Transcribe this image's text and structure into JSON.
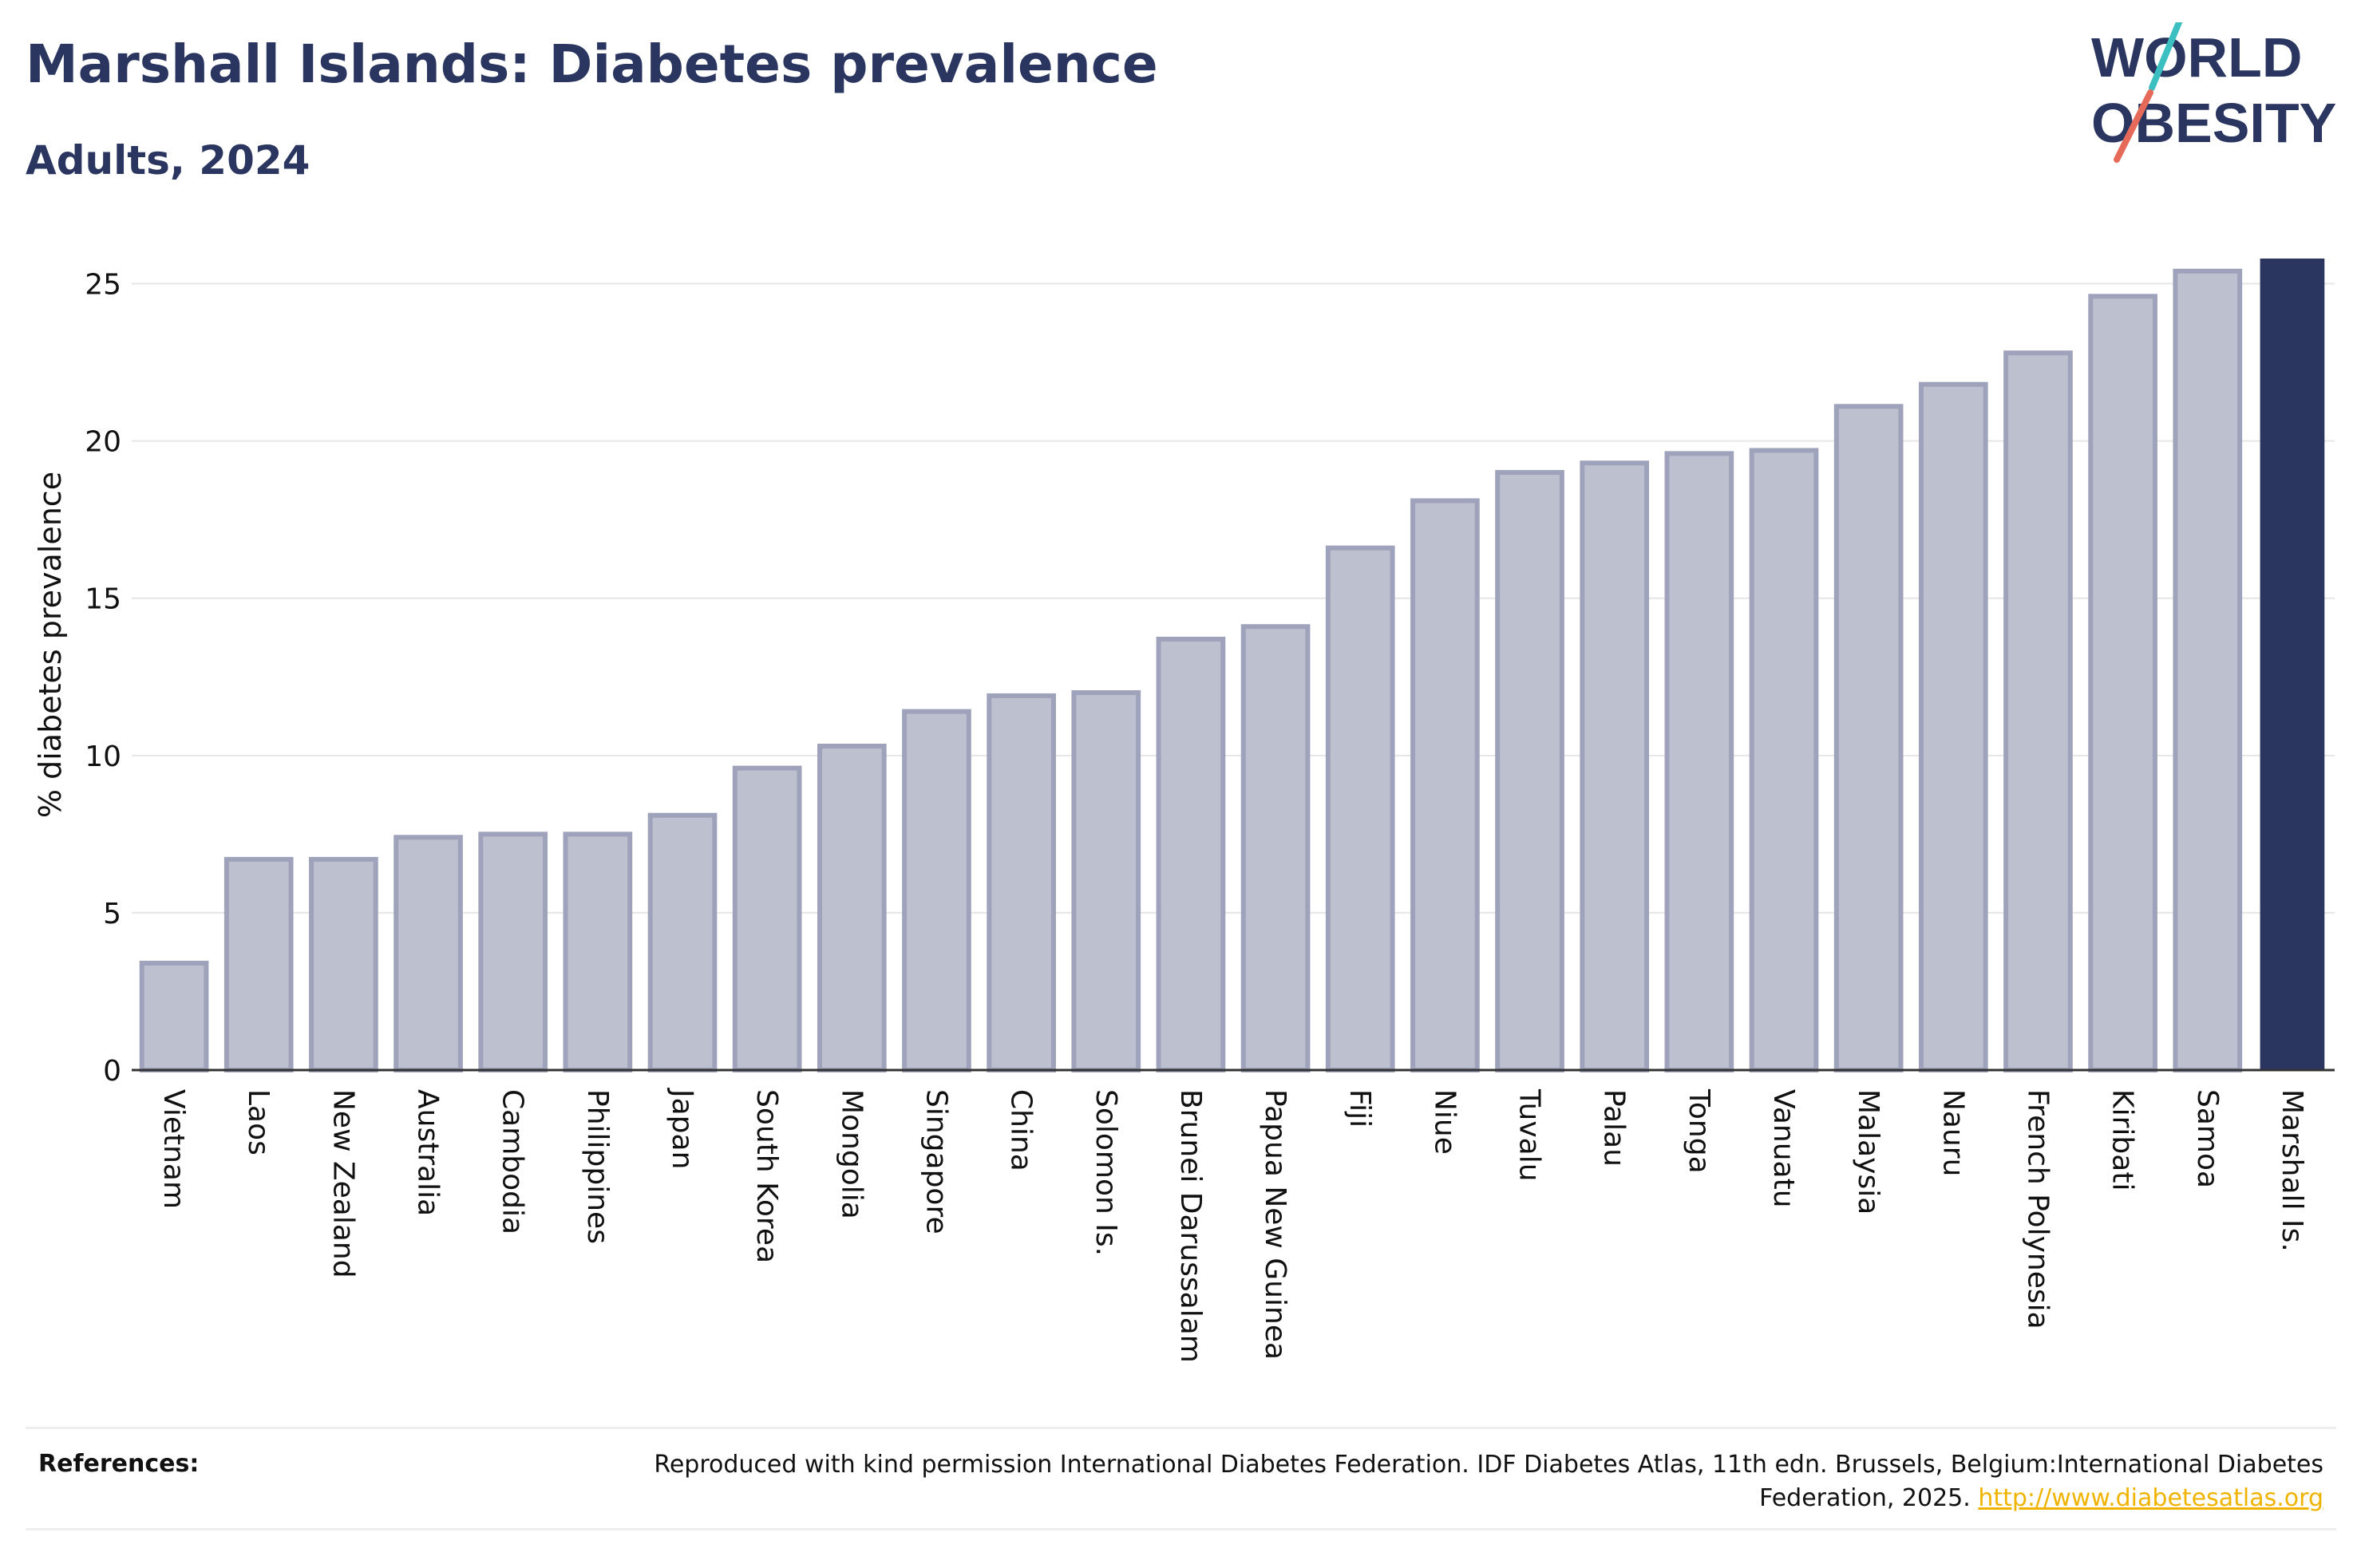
{
  "header": {
    "title": "Marshall Islands: Diabetes prevalence",
    "subtitle": "Adults, 2024"
  },
  "logo": {
    "line1": "WORLD",
    "line2": "OBESITY"
  },
  "colors": {
    "bar": "#bcc0cf",
    "bar_border": "#9ea3bb",
    "highlight": "#2a3560",
    "grid": "#e6e6e6"
  },
  "chart_data": {
    "type": "bar",
    "categories": [
      "Vietnam",
      "Laos",
      "New Zealand",
      "Australia",
      "Cambodia",
      "Philippines",
      "Japan",
      "South Korea",
      "Mongolia",
      "Singapore",
      "China",
      "Solomon Is.",
      "Brunei Darussalam",
      "Papua New Guinea",
      "Fiji",
      "Niue",
      "Tuvalu",
      "Palau",
      "Tonga",
      "Vanuatu",
      "Malaysia",
      "Nauru",
      "French Polynesia",
      "Kiribati",
      "Samoa",
      "Marshall Is."
    ],
    "values": [
      3.4,
      6.7,
      6.7,
      7.4,
      7.5,
      7.5,
      8.1,
      9.6,
      10.3,
      11.4,
      11.9,
      12.0,
      13.7,
      14.1,
      16.6,
      18.1,
      19.0,
      19.3,
      19.6,
      19.7,
      21.1,
      21.8,
      22.8,
      24.6,
      25.4,
      25.8
    ],
    "highlight": "Marshall Is.",
    "ylabel": "% diabetes prevalence",
    "xlabel": "",
    "ylim": [
      0,
      25.8
    ],
    "yticks": [
      0,
      5,
      10,
      15,
      20,
      25
    ],
    "grid": true
  },
  "references": {
    "label": "References:",
    "text": "Reproduced with kind permission International Diabetes Federation. IDF Diabetes Atlas, 11th edn. Brussels, Belgium:International Diabetes Federation, 2025.",
    "link": "http://www.diabetesatlas.org"
  }
}
